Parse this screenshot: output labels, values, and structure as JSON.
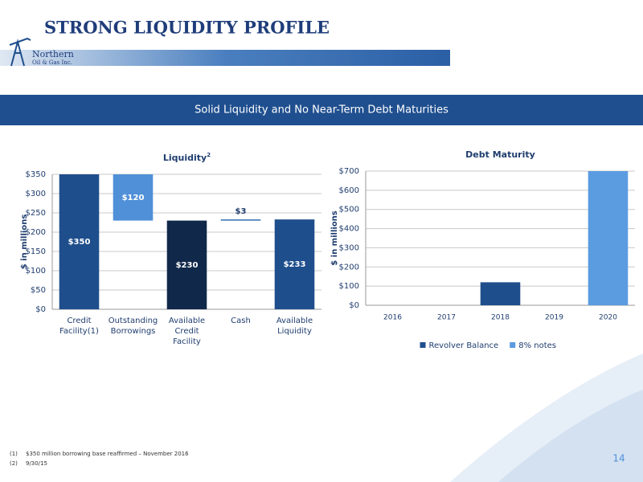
{
  "header": {
    "title": "STRONG LIQUIDITY PROFILE",
    "logo_name": "Northern",
    "logo_sub": "Oil & Gas Inc."
  },
  "banner": "Solid Liquidity and No Near-Term Debt Maturities",
  "chart_data": [
    {
      "type": "waterfall",
      "title": "Liquidity",
      "title_note": "2",
      "y_label": "$ in millions",
      "categories": [
        "Credit Facility(1)",
        "Outstanding Borrowings",
        "Available Credit Facility",
        "Cash",
        "Available Liquidity"
      ],
      "values": [
        350,
        120,
        230,
        3,
        233
      ],
      "value_labels": [
        "$350",
        "$120",
        "$230",
        "$3",
        "$233"
      ],
      "measures": [
        "total",
        "decrease",
        "total",
        "increase",
        "total"
      ],
      "colors": [
        "#1f4e8c",
        "#4f90d8",
        "#10284a",
        "#2e6db0",
        "#1f4e8c"
      ],
      "ylim": [
        0,
        350
      ],
      "yticks": [
        {
          "value": 0,
          "label": "$0"
        },
        {
          "value": 50,
          "label": "$50"
        },
        {
          "value": 100,
          "label": "$100"
        },
        {
          "value": 150,
          "label": "$150"
        },
        {
          "value": 200,
          "label": "$200"
        },
        {
          "value": 250,
          "label": "$250"
        },
        {
          "value": 300,
          "label": "$300"
        },
        {
          "value": 350,
          "label": "$350"
        }
      ],
      "grid": true
    },
    {
      "type": "stacked_bar",
      "title": "Debt Maturity",
      "y_label": "$ in millions",
      "categories": [
        "2016",
        "2017",
        "2018",
        "2019",
        "2020"
      ],
      "series": [
        {
          "name": "Revolver Balance",
          "color": "#1f4e8c",
          "values": [
            0,
            0,
            120,
            0,
            0
          ]
        },
        {
          "name": "8% notes",
          "color": "#5b9be0",
          "values": [
            0,
            0,
            0,
            0,
            700
          ]
        }
      ],
      "ylim": [
        0,
        700
      ],
      "yticks": [
        {
          "value": 0,
          "label": "$0"
        },
        {
          "value": 100,
          "label": "$100"
        },
        {
          "value": 200,
          "label": "$200"
        },
        {
          "value": 300,
          "label": "$300"
        },
        {
          "value": 400,
          "label": "$400"
        },
        {
          "value": 500,
          "label": "$500"
        },
        {
          "value": 600,
          "label": "$600"
        },
        {
          "value": 700,
          "label": "$700"
        }
      ],
      "grid": true,
      "legend": "bottom"
    }
  ],
  "footnotes": [
    {
      "marker": "(1)",
      "text": "$350 million borrowing base reaffirmed – November 2016"
    },
    {
      "marker": "(2)",
      "text": "9/30/15"
    }
  ],
  "page_number": "14"
}
